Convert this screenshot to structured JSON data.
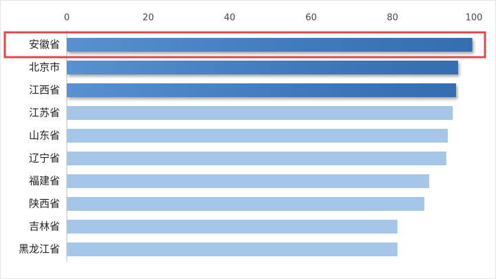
{
  "chart_data": {
    "type": "bar",
    "orientation": "horizontal",
    "categories": [
      "安徽省",
      "北京市",
      "江西省",
      "江苏省",
      "山东省",
      "辽宁省",
      "福建省",
      "陕西省",
      "吉林省",
      "黑龙江省"
    ],
    "values": [
      99.6,
      96.1,
      95.6,
      94.8,
      93.6,
      93.2,
      89.0,
      87.8,
      81.2,
      81.2
    ],
    "colors": [
      "#3b7dc8",
      "#3b7dc8",
      "#3b7dc8",
      "#a6c6e8",
      "#a6c6e8",
      "#a6c6e8",
      "#a6c6e8",
      "#a6c6e8",
      "#a6c6e8",
      "#a6c6e8"
    ],
    "xlim": [
      0,
      100
    ],
    "xticks": [
      0,
      20,
      40,
      60,
      80,
      100
    ],
    "grid": false
  }
}
